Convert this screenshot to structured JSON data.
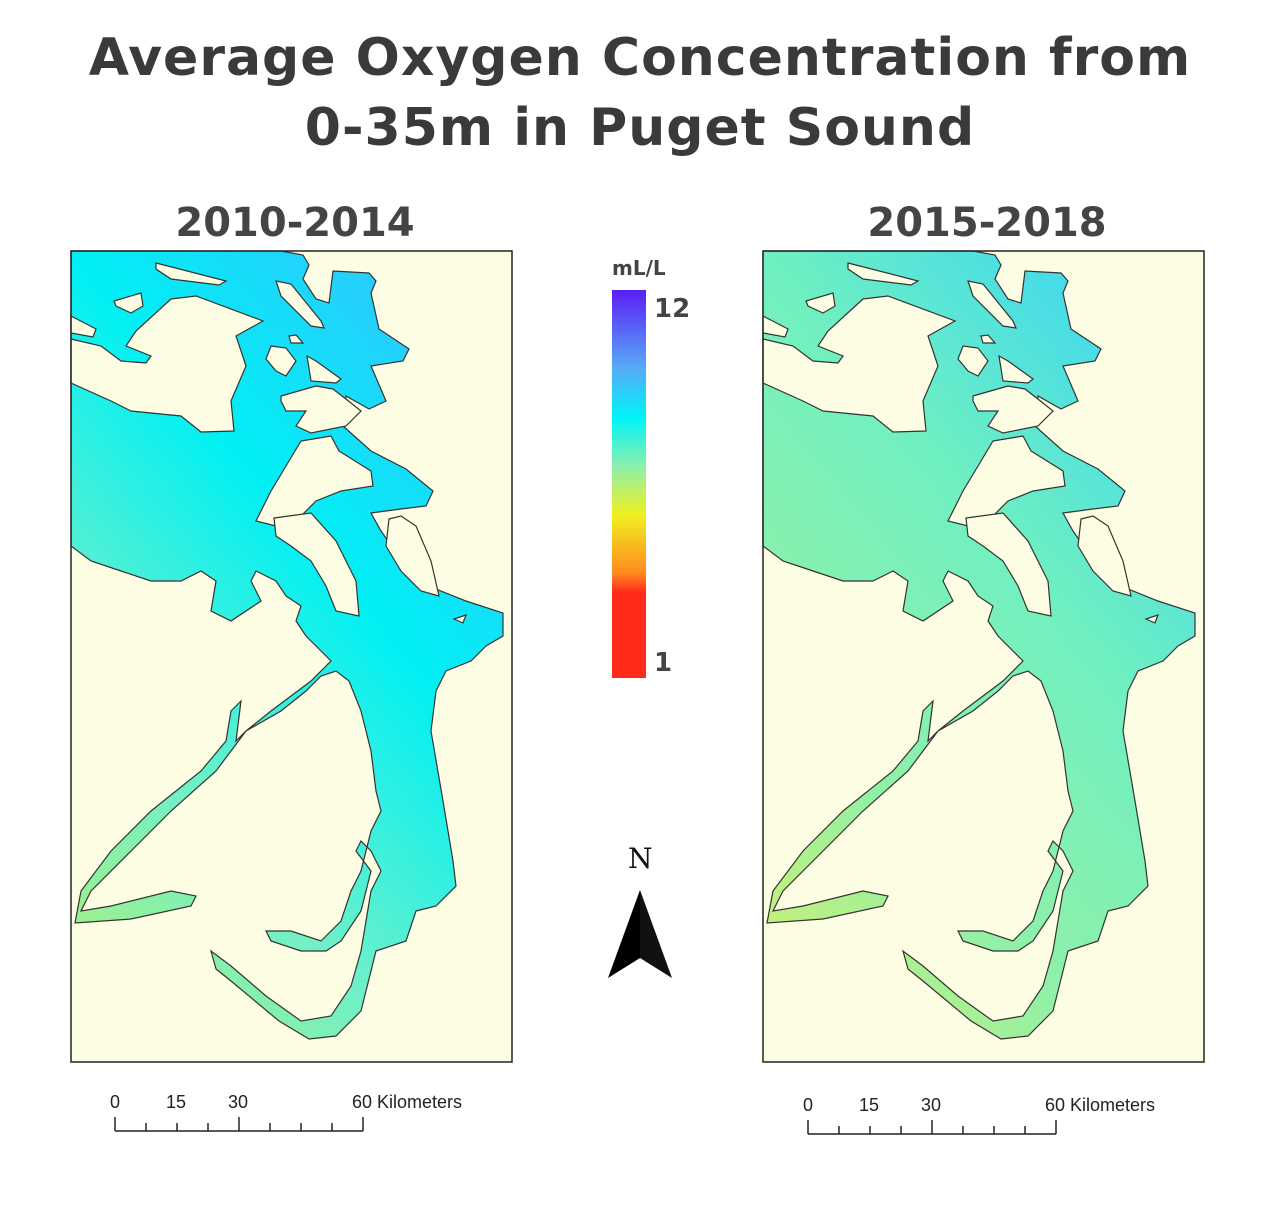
{
  "title": {
    "line1": "Average Oxygen Concentration from",
    "line2": "0-35m in Puget Sound"
  },
  "panels": [
    {
      "label": "2010-2014",
      "colors": {
        "top": "#2ec8ff",
        "mid": "#00f0f4",
        "low": "#70f0c8",
        "tip": "#a8f080"
      }
    },
    {
      "label": "2015-2018",
      "colors": {
        "top": "#3ed8f0",
        "mid": "#70f0c0",
        "low": "#90f0a8",
        "tip": "#d0f070"
      }
    }
  ],
  "land_color": "#fdfde3",
  "legend": {
    "unit": "mL/L",
    "max_label": "12",
    "min_label": "1",
    "range": [
      1,
      12
    ],
    "stops": [
      {
        "pos": 0,
        "color": "#5a1ef5"
      },
      {
        "pos": 0.2,
        "color": "#58aaf8"
      },
      {
        "pos": 0.33,
        "color": "#00f4f8"
      },
      {
        "pos": 0.45,
        "color": "#88f0b0"
      },
      {
        "pos": 0.58,
        "color": "#f0f020"
      },
      {
        "pos": 0.73,
        "color": "#ff8a20"
      },
      {
        "pos": 0.78,
        "color": "#ff2a1a"
      },
      {
        "pos": 1,
        "color": "#ff2a1a"
      }
    ]
  },
  "north_arrow": {
    "label": "N"
  },
  "scale_bar": {
    "labels": [
      "0",
      "15",
      "30",
      "60 Kilometers"
    ],
    "max_km": 60,
    "tick_km": 7.5
  }
}
